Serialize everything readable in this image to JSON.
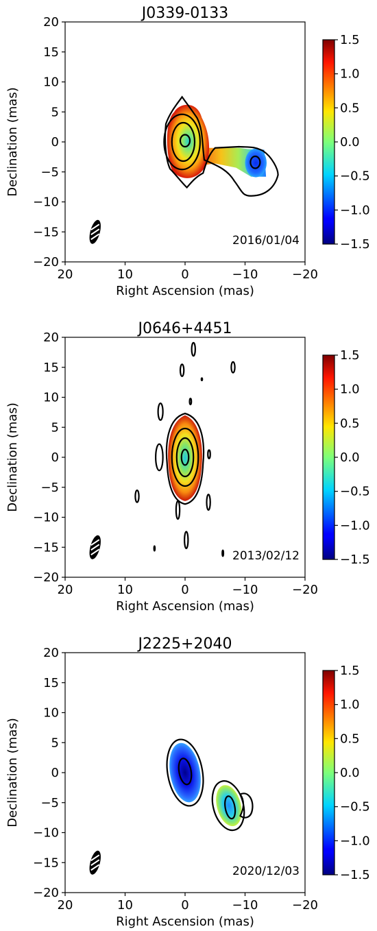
{
  "chart_data": [
    {
      "type": "heatmap",
      "title": "J0339-0133",
      "xlabel": "Right Ascension (mas)",
      "ylabel": "Declination (mas)",
      "xlim": [
        20,
        -20
      ],
      "ylim": [
        -20,
        20
      ],
      "xticks": [
        "20",
        "10",
        "0",
        "−10",
        "−20"
      ],
      "yticks": [
        "20",
        "15",
        "10",
        "5",
        "0",
        "−5",
        "−10",
        "−15",
        "−20"
      ],
      "colorbar": {
        "range": [
          -1.5,
          1.5
        ],
        "ticks": [
          "1.5",
          "1.0",
          "0.5",
          "0.0",
          "−0.5",
          "−1.0",
          "−1.5"
        ]
      },
      "date": "2016/01/04",
      "components": [
        {
          "ra": 0,
          "dec": 0,
          "color": "#2ad2c8",
          "size": [
            3.0,
            4.0
          ]
        },
        {
          "ra": -5,
          "dec": -2.5,
          "color": "#ee4a15"
        },
        {
          "ra": -8.5,
          "dec": -2.5,
          "color": "#8be86a"
        },
        {
          "ra": -11.5,
          "dec": -3.5,
          "color": "#1f5bff",
          "size": [
            1.8,
            2.5
          ]
        }
      ]
    },
    {
      "type": "heatmap",
      "title": "J0646+4451",
      "xlabel": "Right Ascension (mas)",
      "ylabel": "Declination (mas)",
      "xlim": [
        20,
        -20
      ],
      "ylim": [
        -20,
        20
      ],
      "xticks": [
        "20",
        "10",
        "0",
        "−10",
        "−20"
      ],
      "yticks": [
        "20",
        "15",
        "10",
        "5",
        "0",
        "−5",
        "−10",
        "−15",
        "−20"
      ],
      "colorbar": {
        "range": [
          -1.5,
          1.5
        ],
        "ticks": [
          "1.5",
          "1.0",
          "0.5",
          "0.0",
          "−0.5",
          "−1.0",
          "−1.5"
        ]
      },
      "date": "2013/02/12",
      "components": [
        {
          "ra": 0,
          "dec": 0,
          "color": "#23d0d8",
          "size": [
            2.0,
            4.0
          ]
        }
      ]
    },
    {
      "type": "heatmap",
      "title": "J2225+2040",
      "xlabel": "Right Ascension (mas)",
      "ylabel": "Declination (mas)",
      "xlim": [
        20,
        -20
      ],
      "ylim": [
        -20,
        20
      ],
      "xticks": [
        "20",
        "10",
        "0",
        "−10",
        "−20"
      ],
      "yticks": [
        "20",
        "15",
        "10",
        "5",
        "0",
        "−5",
        "−10",
        "−15",
        "−20"
      ],
      "colorbar": {
        "range": [
          -1.5,
          1.5
        ],
        "ticks": [
          "1.5",
          "1.0",
          "0.5",
          "0.0",
          "−0.5",
          "−1.0",
          "−1.5"
        ]
      },
      "date": "2020/12/03",
      "components": [
        {
          "ra": 0,
          "dec": 0,
          "color": "#1010d0",
          "size": [
            2.8,
            6.0
          ]
        },
        {
          "ra": -7.5,
          "dec": -5.5,
          "color": "#3ab0e8",
          "size": [
            2.8,
            4.5
          ]
        }
      ]
    }
  ]
}
